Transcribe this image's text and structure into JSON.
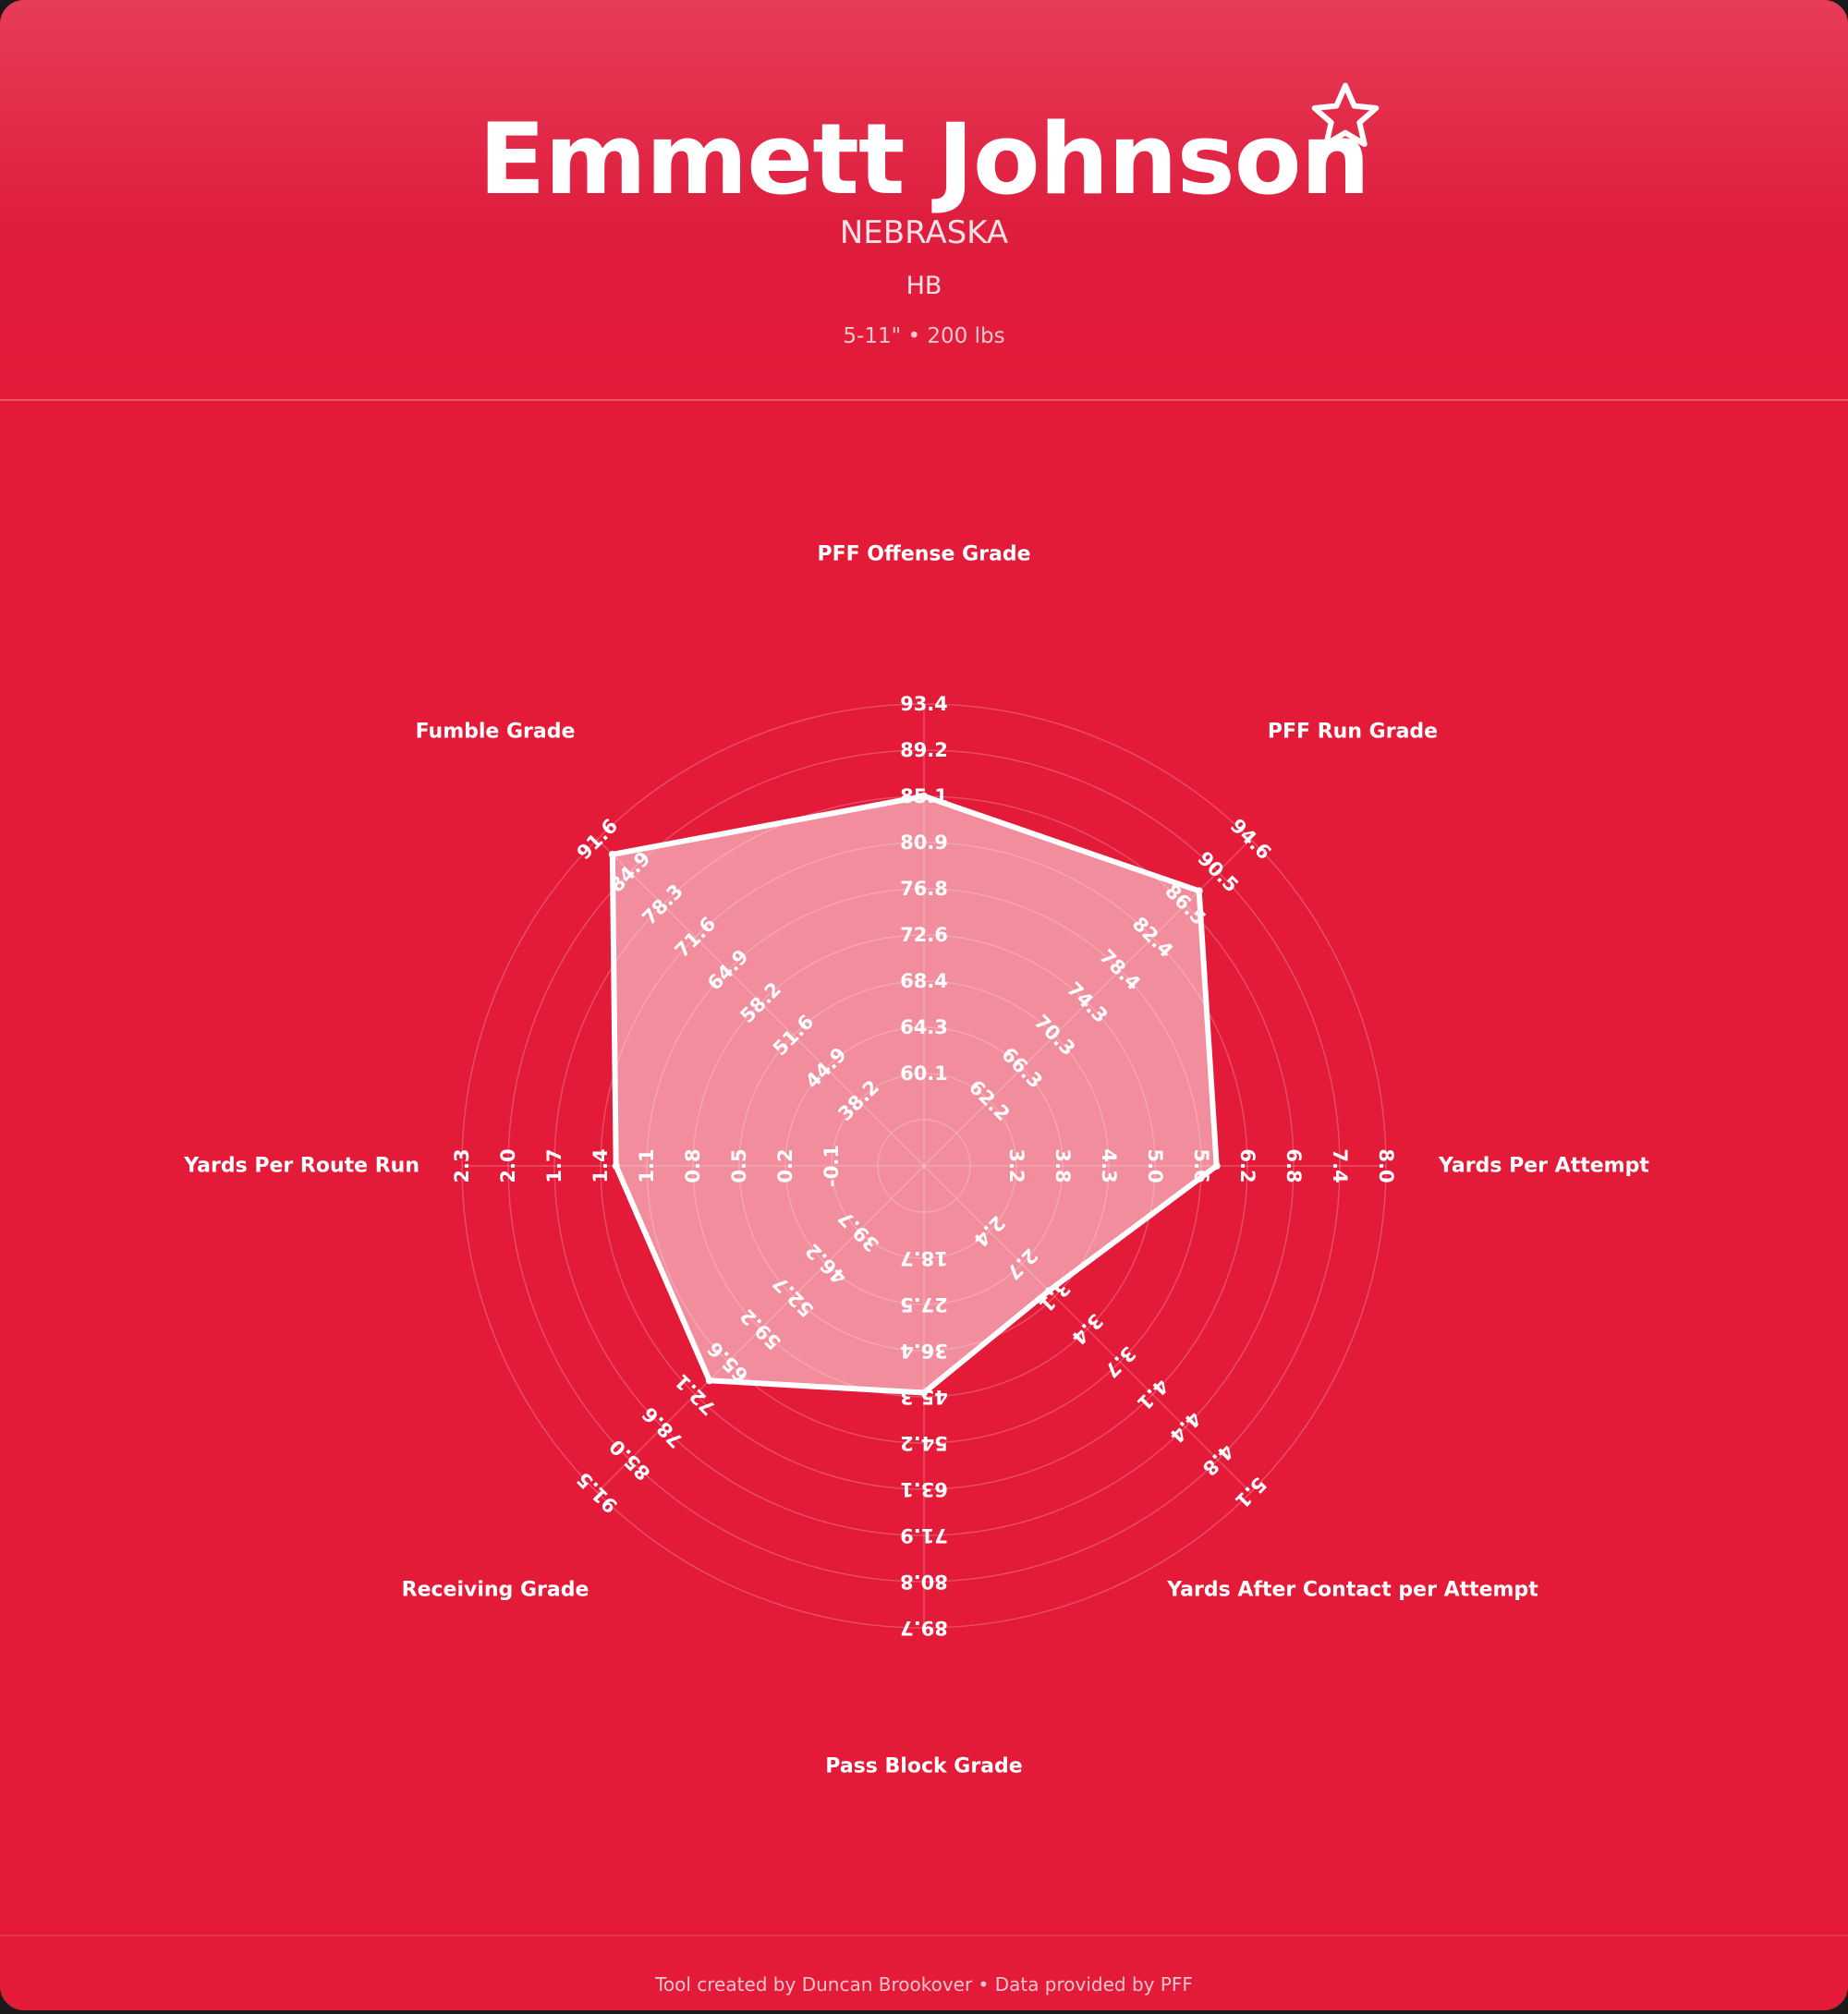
{
  "header": {
    "player_name": "Emmett Johnson",
    "team": "NEBRASKA",
    "position": "HB",
    "size": "5-11\" • 200 lbs",
    "favorite_icon": "star-outline-icon"
  },
  "footer": {
    "credit": "Tool created by Duncan Brookover • Data provided by PFF"
  },
  "colors": {
    "background": "#e31a38",
    "polygon_fill": "rgba(255,255,255,0.5)",
    "polygon_stroke": "#ffffff",
    "grid": "rgba(255,255,255,0.22)"
  },
  "chart_data": {
    "type": "radar",
    "grid": true,
    "axes": [
      {
        "label": "PFF Offense Grade",
        "ticks": [
          "60.1",
          "64.3",
          "68.4",
          "72.6",
          "76.8",
          "80.9",
          "85.1",
          "89.2",
          "93.4"
        ],
        "range": [
          51.8,
          93.4
        ],
        "value": 85.1
      },
      {
        "label": "PFF Run Grade",
        "ticks": [
          "62.2",
          "66.3",
          "70.3",
          "74.3",
          "78.4",
          "82.4",
          "86.5",
          "90.5",
          "94.6"
        ],
        "range": [
          54.1,
          94.6
        ],
        "value": 88.2
      },
      {
        "label": "Yards Per Attempt",
        "ticks": [
          "3.2",
          "3.8",
          "4.3",
          "5.0",
          "5.6",
          "6.2",
          "6.8",
          "7.4",
          "8.0"
        ],
        "range": [
          2.0,
          8.0
        ],
        "value": 5.8
      },
      {
        "label": "Yards After Contact per Attempt",
        "ticks": [
          "2.4",
          "2.7",
          "3.1",
          "3.4",
          "3.7",
          "4.1",
          "4.4",
          "4.8",
          "5.1"
        ],
        "range": [
          1.7,
          5.1
        ],
        "value": 3.0
      },
      {
        "label": "Pass Block Grade",
        "ticks": [
          "18.7",
          "27.5",
          "36.4",
          "45.3",
          "54.2",
          "63.1",
          "71.9",
          "80.8",
          "89.7"
        ],
        "range": [
          0.9,
          89.7
        ],
        "value": 44.5
      },
      {
        "label": "Receiving Grade",
        "ticks": [
          "39.7",
          "46.2",
          "52.7",
          "59.2",
          "65.6",
          "72.1",
          "78.6",
          "85.0",
          "91.5"
        ],
        "range": [
          26.8,
          91.5
        ],
        "value": 69.3
      },
      {
        "label": "Yards Per Route Run",
        "ticks": [
          "-0.1",
          "0.2",
          "0.5",
          "0.8",
          "1.1",
          "1.4",
          "1.7",
          "2.0",
          "2.3"
        ],
        "range": [
          -0.7,
          2.3
        ],
        "value": 1.3
      },
      {
        "label": "Fumble Grade",
        "ticks": [
          "38.2",
          "44.9",
          "51.6",
          "58.2",
          "64.9",
          "71.6",
          "78.3",
          "84.9",
          "91.6"
        ],
        "range": [
          24.8,
          91.6
        ],
        "value": 88.5
      }
    ]
  }
}
